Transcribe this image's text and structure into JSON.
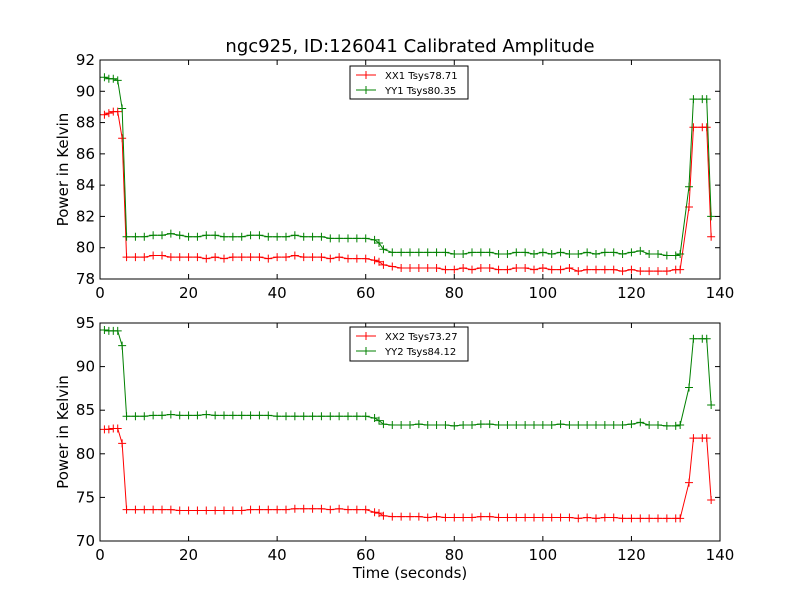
{
  "title": "ngc925, ID:126041 Calibrated Amplitude",
  "chart_data": [
    {
      "type": "line",
      "xlabel": "",
      "ylabel": "Power in Kelvin",
      "xlim": [
        0,
        140
      ],
      "ylim": [
        78,
        92
      ],
      "xticks": [
        "0",
        "20",
        "40",
        "60",
        "80",
        "100",
        "120",
        "140"
      ],
      "yticks": [
        "78",
        "80",
        "82",
        "84",
        "86",
        "88",
        "90",
        "92"
      ],
      "legend": "top-center",
      "grid": false,
      "series": [
        {
          "name": "XX1 Tsys78.71",
          "color": "#ff0000",
          "x": [
            1,
            2,
            3,
            4,
            5,
            6,
            8,
            10,
            12,
            14,
            16,
            18,
            20,
            22,
            24,
            26,
            28,
            30,
            32,
            34,
            36,
            38,
            40,
            42,
            44,
            46,
            48,
            50,
            52,
            54,
            56,
            58,
            60,
            62,
            63,
            64,
            66,
            68,
            70,
            72,
            74,
            76,
            78,
            80,
            82,
            84,
            86,
            88,
            90,
            92,
            94,
            96,
            98,
            100,
            102,
            104,
            106,
            108,
            110,
            112,
            114,
            116,
            118,
            120,
            122,
            124,
            126,
            128,
            130,
            131,
            133,
            134,
            136,
            137,
            138
          ],
          "y": [
            88.5,
            88.6,
            88.7,
            88.7,
            87.0,
            79.4,
            79.4,
            79.4,
            79.5,
            79.5,
            79.4,
            79.4,
            79.4,
            79.4,
            79.3,
            79.4,
            79.3,
            79.4,
            79.4,
            79.4,
            79.4,
            79.3,
            79.4,
            79.4,
            79.5,
            79.4,
            79.4,
            79.4,
            79.3,
            79.4,
            79.3,
            79.3,
            79.3,
            79.2,
            79.1,
            78.9,
            78.8,
            78.7,
            78.7,
            78.7,
            78.7,
            78.7,
            78.6,
            78.6,
            78.7,
            78.6,
            78.7,
            78.7,
            78.6,
            78.6,
            78.7,
            78.7,
            78.6,
            78.7,
            78.6,
            78.6,
            78.7,
            78.5,
            78.6,
            78.6,
            78.6,
            78.6,
            78.5,
            78.6,
            78.5,
            78.5,
            78.5,
            78.5,
            78.6,
            78.6,
            82.6,
            87.7,
            87.7,
            87.7,
            80.7
          ]
        },
        {
          "name": "YY1 Tsys80.35",
          "color": "#008000",
          "x": [
            1,
            2,
            3,
            4,
            5,
            6,
            8,
            10,
            12,
            14,
            16,
            18,
            20,
            22,
            24,
            26,
            28,
            30,
            32,
            34,
            36,
            38,
            40,
            42,
            44,
            46,
            48,
            50,
            52,
            54,
            56,
            58,
            60,
            62,
            63,
            64,
            66,
            68,
            70,
            72,
            74,
            76,
            78,
            80,
            82,
            84,
            86,
            88,
            90,
            92,
            94,
            96,
            98,
            100,
            102,
            104,
            106,
            108,
            110,
            112,
            114,
            116,
            118,
            120,
            122,
            124,
            126,
            128,
            130,
            131,
            133,
            134,
            136,
            137,
            138
          ],
          "y": [
            90.9,
            90.8,
            90.8,
            90.7,
            88.9,
            80.7,
            80.7,
            80.7,
            80.8,
            80.8,
            80.9,
            80.8,
            80.7,
            80.7,
            80.8,
            80.8,
            80.7,
            80.7,
            80.7,
            80.8,
            80.8,
            80.7,
            80.7,
            80.7,
            80.8,
            80.7,
            80.7,
            80.7,
            80.6,
            80.6,
            80.6,
            80.6,
            80.6,
            80.5,
            80.3,
            79.9,
            79.7,
            79.7,
            79.7,
            79.7,
            79.7,
            79.7,
            79.7,
            79.6,
            79.6,
            79.7,
            79.7,
            79.7,
            79.6,
            79.6,
            79.7,
            79.7,
            79.6,
            79.7,
            79.6,
            79.7,
            79.6,
            79.6,
            79.7,
            79.6,
            79.7,
            79.7,
            79.6,
            79.7,
            79.8,
            79.6,
            79.6,
            79.5,
            79.5,
            79.6,
            83.9,
            89.5,
            89.5,
            89.5,
            82.0
          ]
        }
      ]
    },
    {
      "type": "line",
      "xlabel": "Time (seconds)",
      "ylabel": "Power in Kelvin",
      "xlim": [
        0,
        140
      ],
      "ylim": [
        70,
        95
      ],
      "xticks": [
        "0",
        "20",
        "40",
        "60",
        "80",
        "100",
        "120",
        "140"
      ],
      "yticks": [
        "70",
        "75",
        "80",
        "85",
        "90",
        "95"
      ],
      "legend": "top-center",
      "grid": false,
      "series": [
        {
          "name": "XX2 Tsys73.27",
          "color": "#ff0000",
          "x": [
            1,
            2,
            3,
            4,
            5,
            6,
            8,
            10,
            12,
            14,
            16,
            18,
            20,
            22,
            24,
            26,
            28,
            30,
            32,
            34,
            36,
            38,
            40,
            42,
            44,
            46,
            48,
            50,
            52,
            54,
            56,
            58,
            60,
            62,
            63,
            64,
            66,
            68,
            70,
            72,
            74,
            76,
            78,
            80,
            82,
            84,
            86,
            88,
            90,
            92,
            94,
            96,
            98,
            100,
            102,
            104,
            106,
            108,
            110,
            112,
            114,
            116,
            118,
            120,
            122,
            124,
            126,
            128,
            130,
            131,
            133,
            134,
            136,
            137,
            138
          ],
          "y": [
            82.8,
            82.8,
            82.9,
            82.9,
            81.2,
            73.6,
            73.6,
            73.6,
            73.6,
            73.6,
            73.6,
            73.5,
            73.5,
            73.5,
            73.5,
            73.5,
            73.5,
            73.5,
            73.5,
            73.6,
            73.6,
            73.6,
            73.6,
            73.6,
            73.7,
            73.7,
            73.7,
            73.7,
            73.6,
            73.7,
            73.6,
            73.6,
            73.6,
            73.3,
            73.2,
            72.9,
            72.8,
            72.8,
            72.8,
            72.8,
            72.7,
            72.8,
            72.7,
            72.7,
            72.7,
            72.7,
            72.8,
            72.8,
            72.7,
            72.7,
            72.7,
            72.7,
            72.7,
            72.7,
            72.7,
            72.7,
            72.7,
            72.6,
            72.7,
            72.6,
            72.7,
            72.7,
            72.6,
            72.6,
            72.6,
            72.6,
            72.6,
            72.6,
            72.6,
            72.6,
            76.7,
            81.8,
            81.8,
            81.8,
            74.7
          ]
        },
        {
          "name": "YY2 Tsys84.12",
          "color": "#008000",
          "x": [
            1,
            2,
            3,
            4,
            5,
            6,
            8,
            10,
            12,
            14,
            16,
            18,
            20,
            22,
            24,
            26,
            28,
            30,
            32,
            34,
            36,
            38,
            40,
            42,
            44,
            46,
            48,
            50,
            52,
            54,
            56,
            58,
            60,
            62,
            63,
            64,
            66,
            68,
            70,
            72,
            74,
            76,
            78,
            80,
            82,
            84,
            86,
            88,
            90,
            92,
            94,
            96,
            98,
            100,
            102,
            104,
            106,
            108,
            110,
            112,
            114,
            116,
            118,
            120,
            122,
            124,
            126,
            128,
            130,
            131,
            133,
            134,
            136,
            137,
            138
          ],
          "y": [
            94.2,
            94.1,
            94.1,
            94.1,
            92.4,
            84.3,
            84.3,
            84.3,
            84.4,
            84.4,
            84.5,
            84.4,
            84.4,
            84.4,
            84.5,
            84.4,
            84.4,
            84.4,
            84.4,
            84.4,
            84.4,
            84.4,
            84.3,
            84.3,
            84.3,
            84.3,
            84.3,
            84.3,
            84.3,
            84.3,
            84.3,
            84.3,
            84.3,
            84.1,
            83.8,
            83.4,
            83.3,
            83.3,
            83.3,
            83.4,
            83.3,
            83.3,
            83.3,
            83.2,
            83.3,
            83.3,
            83.4,
            83.4,
            83.3,
            83.3,
            83.3,
            83.3,
            83.3,
            83.3,
            83.3,
            83.4,
            83.3,
            83.3,
            83.3,
            83.3,
            83.3,
            83.3,
            83.3,
            83.4,
            83.6,
            83.3,
            83.3,
            83.2,
            83.2,
            83.3,
            87.6,
            93.2,
            93.2,
            93.2,
            85.6
          ]
        }
      ]
    }
  ]
}
